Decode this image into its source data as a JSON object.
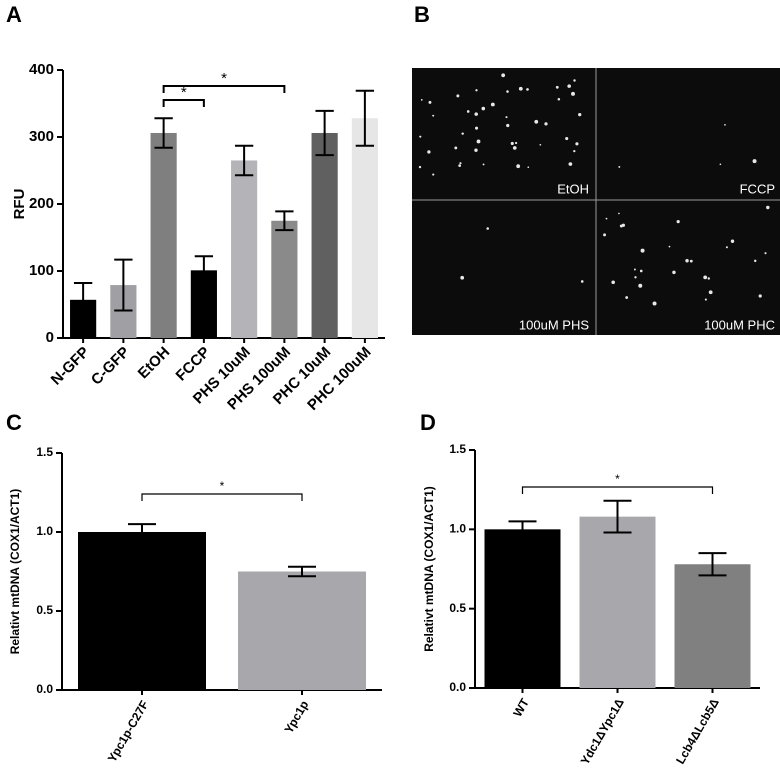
{
  "chart_data": [
    {
      "type": "bar",
      "panel": "A",
      "y_label": "RFU",
      "categories": [
        "N-GFP",
        "C-GFP",
        "EtOH",
        "FCCP",
        "PHS 10uM",
        "PHS 100uM",
        "PHC 10uM",
        "PHC 100uM"
      ],
      "values": [
        57,
        79,
        306,
        101,
        265,
        175,
        306,
        328
      ],
      "errors": [
        25,
        38,
        22,
        21,
        22,
        14,
        33,
        41
      ],
      "colors": [
        "#000000",
        "#a0a0a4",
        "#7f7f7f",
        "#000000",
        "#b4b4b8",
        "#8a8a8a",
        "#606060",
        "#e6e6e6"
      ],
      "ylim": [
        0,
        400
      ],
      "yticks": [
        0,
        100,
        200,
        300,
        400
      ],
      "brackets": [
        {
          "from": 2,
          "to": 3,
          "label": "*"
        },
        {
          "from": 2,
          "to": 5,
          "label": "*"
        }
      ]
    },
    {
      "type": "bar",
      "panel": "C",
      "y_label": "Relativt mtDNA (COX1/ACT1)",
      "categories": [
        "Ypc1p-C27F",
        "Ypc1p"
      ],
      "values": [
        1.0,
        0.75
      ],
      "errors": [
        0.05,
        0.03
      ],
      "colors": [
        "#000000",
        "#a8a8ac"
      ],
      "ylim": [
        0,
        1.5
      ],
      "yticks": [
        {
          "value": 0,
          "label": "0.0"
        },
        0.5,
        {
          "value": 1,
          "label": "1.0"
        },
        1.5
      ],
      "brackets": [
        {
          "from": 0,
          "to": 1,
          "label": "*"
        }
      ]
    },
    {
      "type": "bar",
      "panel": "D",
      "y_label": "Relativt mtDNA (COX1/ACT1)",
      "categories": [
        "WT",
        "Ydc1ΔYpc1Δ",
        "Lcb4ΔLcb5Δ"
      ],
      "values": [
        1.0,
        1.08,
        0.78
      ],
      "errors": [
        0.05,
        0.1,
        0.07
      ],
      "colors": [
        "#000000",
        "#a8a8ac",
        "#808080"
      ],
      "ylim": [
        0,
        1.5
      ],
      "yticks": [
        {
          "value": 0,
          "label": "0.0"
        },
        0.5,
        {
          "value": 1,
          "label": "1.0"
        },
        1.5
      ],
      "brackets": [
        {
          "from": 0,
          "to": 2,
          "label": "*"
        }
      ]
    }
  ],
  "image_panel": {
    "panel": "B",
    "labels": [
      "EtOH",
      "FCCP",
      "100uM PHS",
      "100uM PHC"
    ]
  }
}
